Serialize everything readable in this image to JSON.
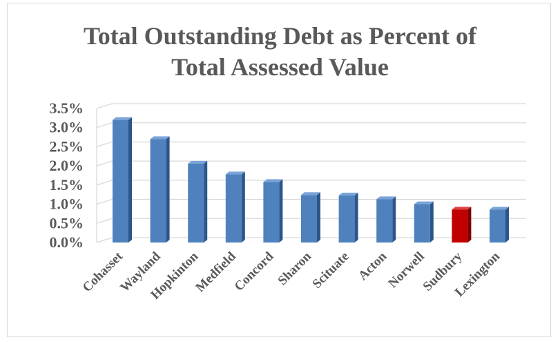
{
  "chart_data": {
    "type": "bar",
    "title_line1": "Total Outstanding Debt as Percent of",
    "title_line2": "Total Assessed Value",
    "categories": [
      "Cohasset",
      "Wayland",
      "Hopkinton",
      "Medfield",
      "Concord",
      "Sharon",
      "Scituate",
      "Acton",
      "Norwell",
      "Sudbury",
      "Lexington"
    ],
    "values": [
      3.2,
      2.7,
      2.06,
      1.78,
      1.58,
      1.24,
      1.23,
      1.13,
      1.0,
      0.86,
      0.86
    ],
    "y_ticks": [
      "0.0%",
      "0.5%",
      "1.0%",
      "1.5%",
      "2.0%",
      "2.5%",
      "3.0%",
      "3.5%"
    ],
    "ylim": [
      0,
      3.5
    ],
    "grid": true,
    "legend": "none",
    "colors": {
      "bar_face": "#4f81bd",
      "bar_side": "#2c5689",
      "bar_top": "#7aa3d8",
      "highlight_face": "#c00000",
      "highlight_side": "#7a0000",
      "highlight_top": "#e04040",
      "highlight_category": "Sudbury",
      "grid": "#d9d9d9",
      "text": "#595959"
    }
  }
}
